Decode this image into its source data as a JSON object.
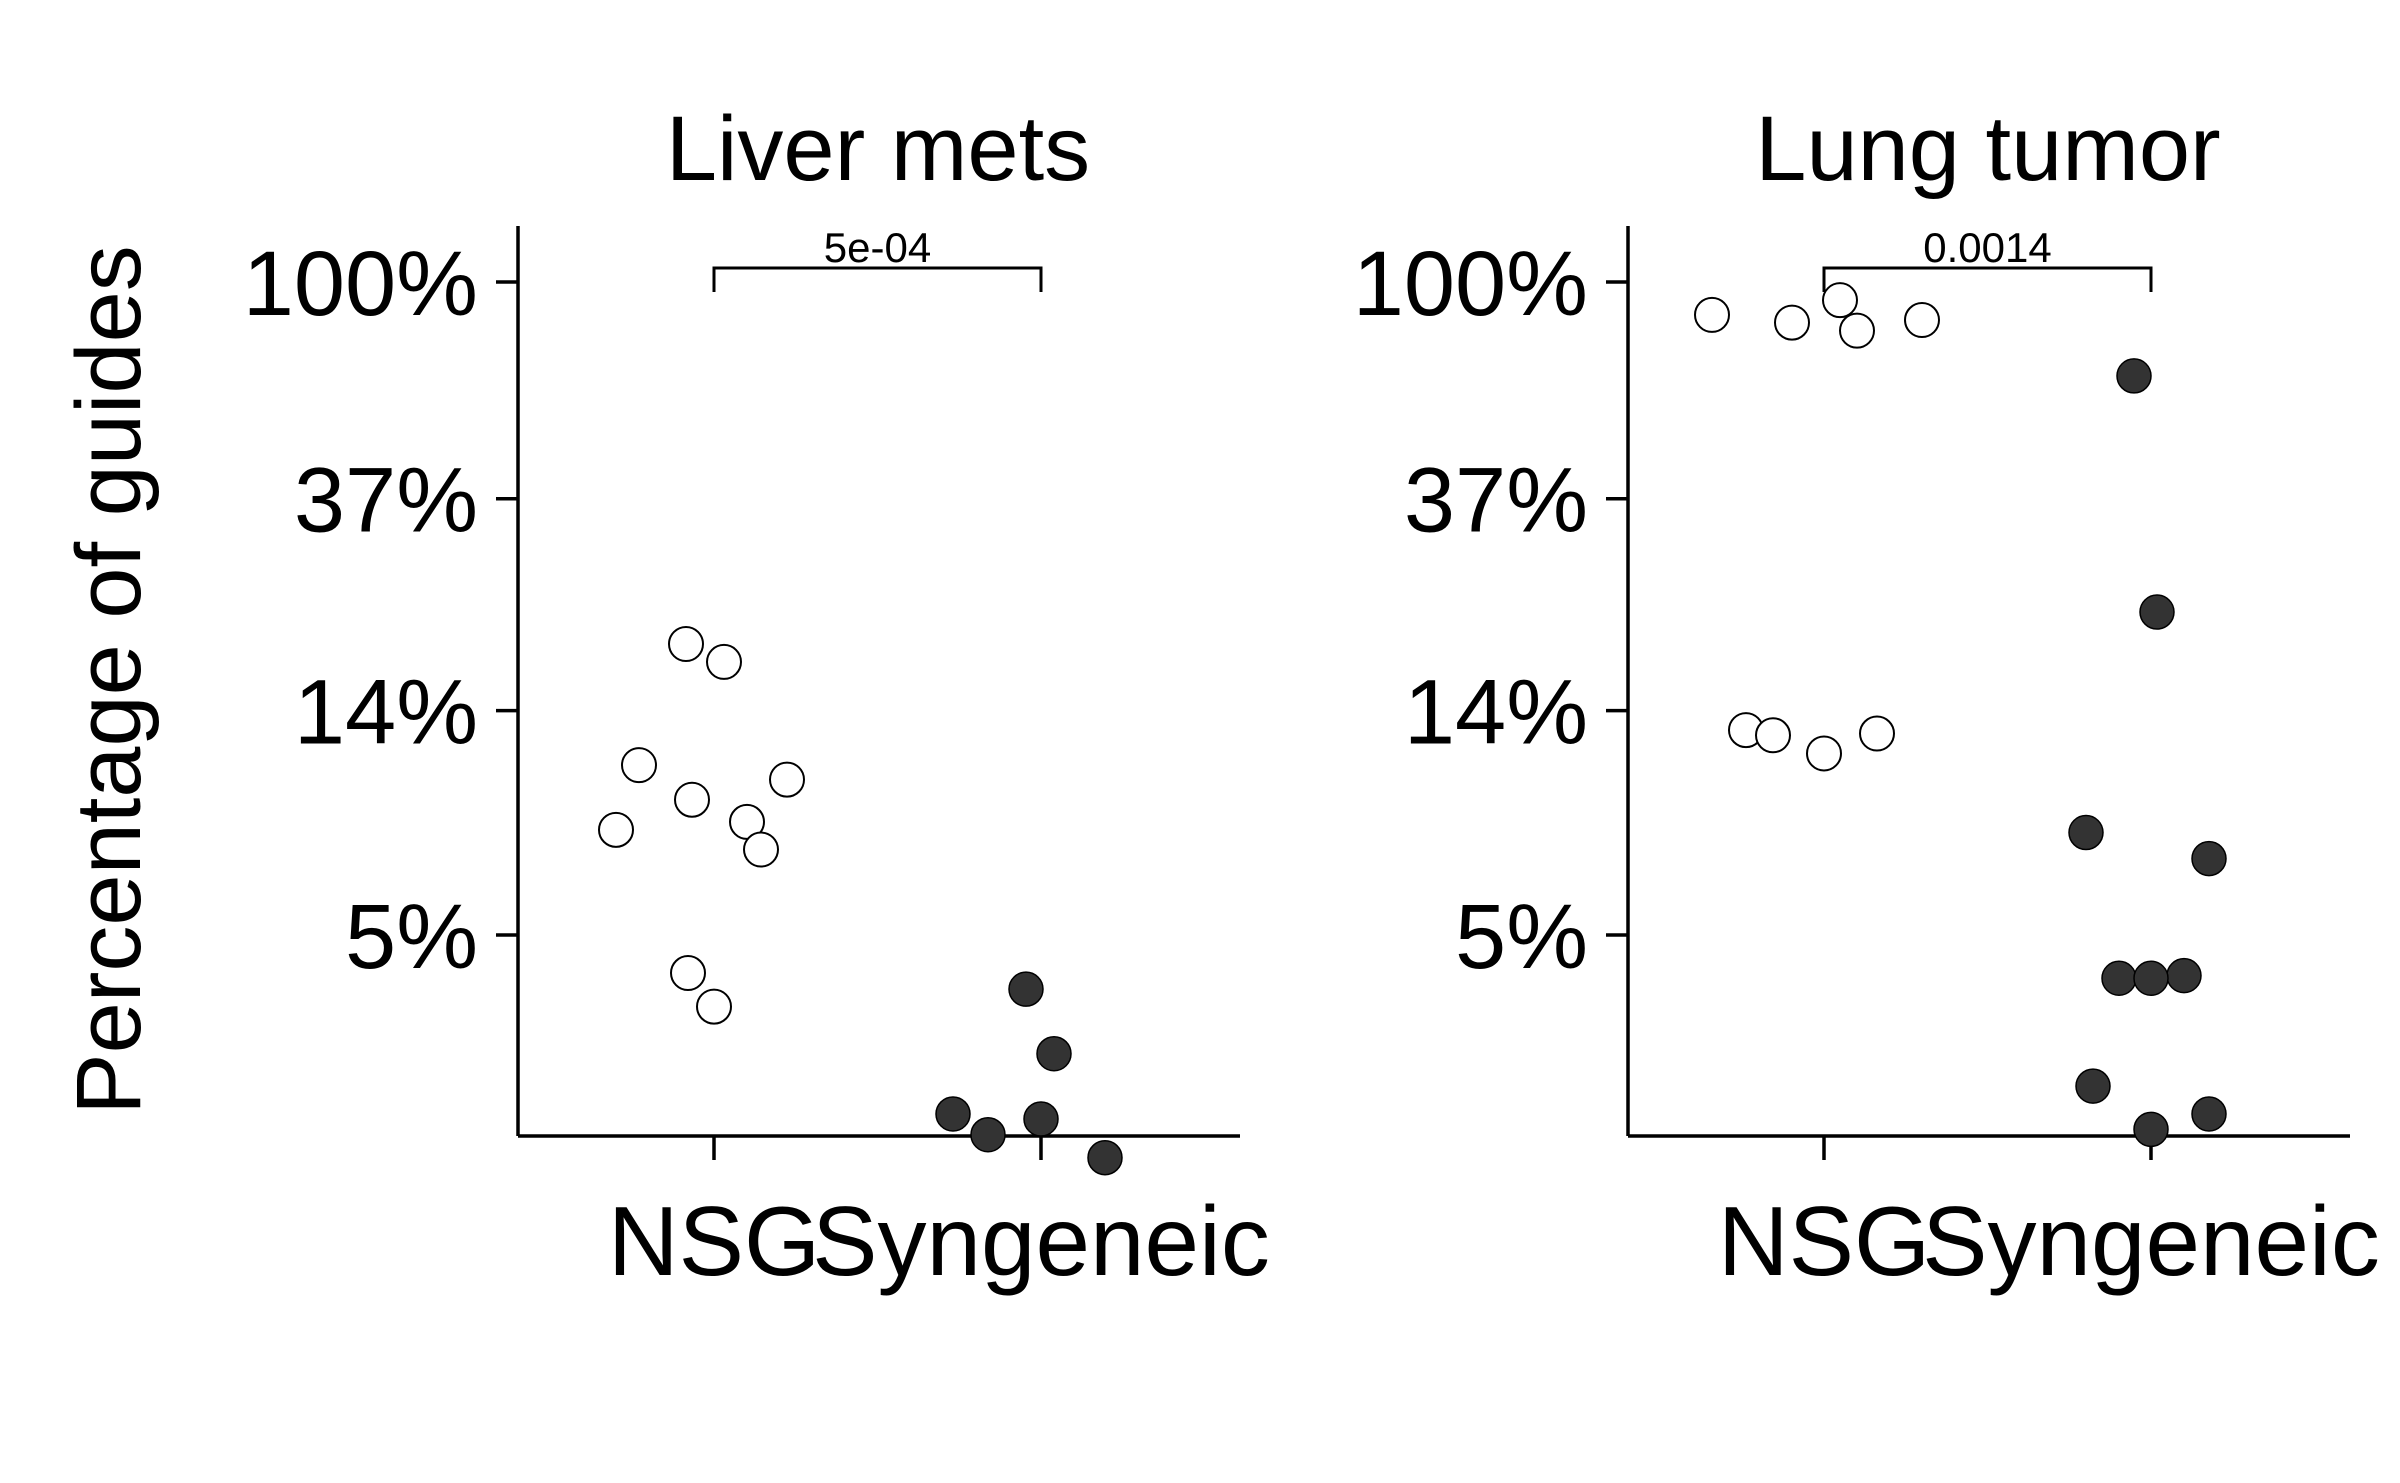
{
  "ylabel": "Percentage of guides",
  "colors": {
    "NSG": "#ffffff",
    "Syngeneic": "#333333",
    "stroke": "#000000"
  },
  "chart_data": [
    {
      "type": "scatter",
      "title": "Liver mets",
      "xlabel": "",
      "ylabel": "Percentage of guides",
      "categories": [
        "NSG",
        "Syngeneic"
      ],
      "y_scale": "log",
      "y_ticks": [
        "100%",
        "37%",
        "14%",
        "5%"
      ],
      "y_tick_values": [
        100,
        37,
        14,
        5
      ],
      "ylim": [
        1.6,
        130
      ],
      "p_value": "5e-04",
      "series": [
        {
          "name": "NSG",
          "values": [
            19.0,
            17.5,
            10.9,
            9.3,
            10.2,
            8.1,
            8.4,
            7.4,
            4.2,
            3.6
          ]
        },
        {
          "name": "Syngeneic",
          "values": [
            3.9,
            2.9,
            2.2,
            2.0,
            1.8,
            2.15
          ]
        }
      ]
    },
    {
      "type": "scatter",
      "title": "Lung tumor",
      "xlabel": "",
      "ylabel": "",
      "categories": [
        "NSG",
        "Syngeneic"
      ],
      "y_scale": "log",
      "y_ticks": [
        "100%",
        "37%",
        "14%",
        "5%"
      ],
      "y_tick_values": [
        100,
        37,
        14,
        5
      ],
      "ylim": [
        1.6,
        130
      ],
      "p_value": "0.0014",
      "series": [
        {
          "name": "NSG",
          "values": [
            86,
            83,
            92,
            80,
            84,
            12.8,
            12.5,
            11.5,
            12.6
          ]
        },
        {
          "name": "Syngeneic",
          "values": [
            65,
            22.0,
            8.0,
            7.1,
            4.1,
            4.15,
            4.1,
            2.5,
            2.2,
            2.05
          ]
        }
      ]
    }
  ]
}
